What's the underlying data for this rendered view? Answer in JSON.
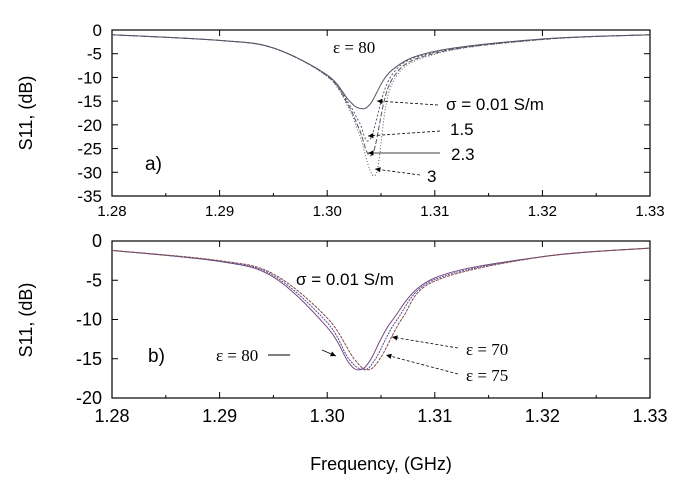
{
  "chart_data": [
    {
      "type": "line",
      "panel_label": "a)",
      "ylabel": "S11, (dB)",
      "xlim": [
        1.28,
        1.33
      ],
      "ylim": [
        -35,
        0
      ],
      "xticks": [
        "1.28",
        "1.29",
        "1.30",
        "1.31",
        "1.32",
        "1.33"
      ],
      "yticks": [
        "0",
        "-5",
        "-10",
        "-15",
        "-20",
        "-25",
        "-30",
        "-35"
      ],
      "annotations": [
        "ε = 80",
        "σ = 0.01 S/m",
        "1.5",
        "2.3",
        "3"
      ],
      "series": [
        {
          "name": "σ = 0.01 S/m",
          "x": [
            1.28,
            1.29,
            1.295,
            1.3,
            1.302,
            1.303,
            1.304,
            1.306,
            1.31,
            1.32,
            1.33
          ],
          "y": [
            -1.0,
            -2.2,
            -3.8,
            -9.5,
            -14.8,
            -16.5,
            -15.6,
            -8.5,
            -4.5,
            -1.9,
            -1.0
          ]
        },
        {
          "name": "1.5",
          "x": [
            1.28,
            1.29,
            1.295,
            1.3,
            1.302,
            1.303,
            1.304,
            1.306,
            1.31,
            1.32,
            1.33
          ],
          "y": [
            -1.0,
            -2.2,
            -3.8,
            -9.6,
            -15.5,
            -19.5,
            -23.0,
            -9.5,
            -4.7,
            -1.9,
            -1.0
          ]
        },
        {
          "name": "2.3",
          "x": [
            1.28,
            1.29,
            1.295,
            1.3,
            1.302,
            1.303,
            1.3042,
            1.306,
            1.31,
            1.32,
            1.33
          ],
          "y": [
            -1.0,
            -2.2,
            -3.8,
            -9.7,
            -16.0,
            -21.0,
            -26.2,
            -10.5,
            -4.9,
            -2.0,
            -1.0
          ]
        },
        {
          "name": "3",
          "x": [
            1.28,
            1.29,
            1.295,
            1.3,
            1.302,
            1.303,
            1.3045,
            1.306,
            1.31,
            1.32,
            1.33
          ],
          "y": [
            -1.0,
            -2.2,
            -3.8,
            -9.8,
            -16.5,
            -22.0,
            -30.5,
            -11.5,
            -5.1,
            -2.0,
            -1.0
          ]
        }
      ]
    },
    {
      "type": "line",
      "panel_label": "b)",
      "ylabel": "S11, (dB)",
      "xlabel": "Frequency, (GHz)",
      "xlim": [
        1.28,
        1.33
      ],
      "ylim": [
        -20,
        0
      ],
      "xticks": [
        "1.28",
        "1.29",
        "1.30",
        "1.31",
        "1.32",
        "1.33"
      ],
      "yticks": [
        "0",
        "-5",
        "-10",
        "-15",
        "-20"
      ],
      "annotations": [
        "σ = 0.01 S/m",
        "ε = 80",
        "ε = 70",
        "ε = 75"
      ],
      "series": [
        {
          "name": "ε = 80",
          "x": [
            1.28,
            1.29,
            1.295,
            1.3,
            1.302,
            1.303,
            1.304,
            1.306,
            1.31,
            1.32,
            1.33
          ],
          "y": [
            -1.2,
            -2.6,
            -4.6,
            -11.0,
            -15.5,
            -16.4,
            -15.2,
            -10.2,
            -4.7,
            -2.0,
            -0.9
          ]
        },
        {
          "name": "ε = 75",
          "x": [
            1.28,
            1.29,
            1.295,
            1.3,
            1.302,
            1.3034,
            1.3045,
            1.3065,
            1.31,
            1.32,
            1.33
          ],
          "y": [
            -1.2,
            -2.6,
            -4.4,
            -10.4,
            -15.0,
            -16.4,
            -15.0,
            -10.0,
            -4.9,
            -2.0,
            -0.9
          ]
        },
        {
          "name": "ε = 70",
          "x": [
            1.28,
            1.29,
            1.295,
            1.3,
            1.3025,
            1.3038,
            1.305,
            1.307,
            1.31,
            1.32,
            1.33
          ],
          "y": [
            -1.2,
            -2.5,
            -4.2,
            -9.8,
            -15.0,
            -16.4,
            -14.8,
            -9.8,
            -5.1,
            -2.0,
            -0.9
          ]
        }
      ]
    }
  ],
  "colors": {
    "curve": "#555566",
    "axis": "#000000",
    "series_b": [
      "#7a4a7a",
      "#4a4a9a",
      "#8a4a4a"
    ]
  }
}
